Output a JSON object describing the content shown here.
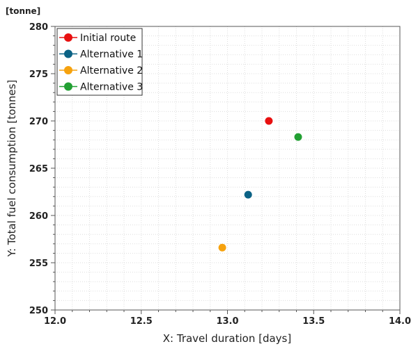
{
  "chart_data": {
    "type": "scatter",
    "unit_label": "[tonne]",
    "xlabel": "X: Travel duration [days]",
    "ylabel": "Y: Total fuel consumption [tonnes]",
    "xlim": [
      12.0,
      14.0
    ],
    "ylim": [
      250,
      280
    ],
    "x_ticks": [
      "12.0",
      "12.5",
      "13.0",
      "13.5",
      "14.0"
    ],
    "y_ticks": [
      "250",
      "255",
      "260",
      "265",
      "270",
      "275",
      "280"
    ],
    "grid": true,
    "legend_position": "top-left",
    "series": [
      {
        "name": "Initial route",
        "color": "#e81010",
        "x": 13.24,
        "y": 270.0
      },
      {
        "name": "Alternative 1",
        "color": "#0b6285",
        "x": 13.12,
        "y": 262.2
      },
      {
        "name": "Alternative 2",
        "color": "#f6a20e",
        "x": 12.97,
        "y": 256.6
      },
      {
        "name": "Alternative 3",
        "color": "#22a033",
        "x": 13.41,
        "y": 268.3
      }
    ]
  }
}
